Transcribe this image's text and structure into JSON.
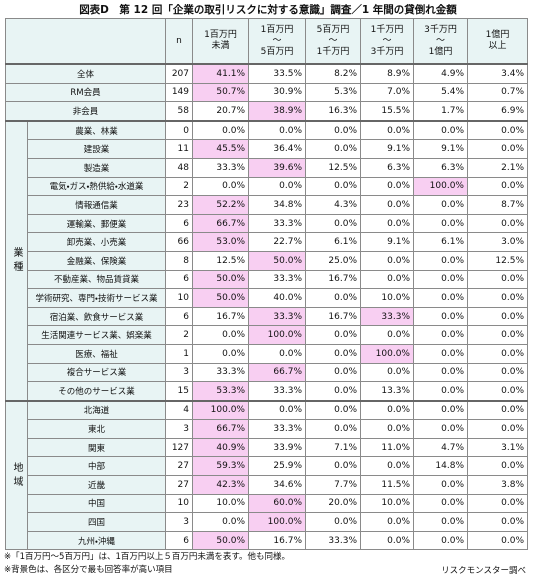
{
  "title": "図表D　第 12 回「企業の取引リスクに対する意識」調査／1 年間の貸倒れ金額",
  "table": {
    "columns": [
      "n",
      "1百万円\n未満",
      "1百万円\n～\n5百万円",
      "5百万円\n～\n1千万円",
      "1千万円\n～\n3千万円",
      "3千万円\n～\n1億円",
      "1億円\n以上"
    ],
    "rows": [
      {
        "name": "全体",
        "n": 207,
        "values": [
          "41.1%",
          "33.5%",
          "8.2%",
          "8.9%",
          "4.9%",
          "3.4%"
        ],
        "highlight": [
          0
        ]
      },
      {
        "name": "RM会員",
        "n": 149,
        "values": [
          "50.7%",
          "30.9%",
          "5.3%",
          "7.0%",
          "5.4%",
          "0.7%"
        ],
        "highlight": [
          0
        ]
      },
      {
        "name": "非会員",
        "n": 58,
        "values": [
          "20.7%",
          "38.9%",
          "16.3%",
          "15.5%",
          "1.7%",
          "6.9%"
        ],
        "highlight": [
          1
        ]
      }
    ],
    "groups": [
      {
        "label": "業種",
        "rows": [
          {
            "name": "農業、林業",
            "n": 0,
            "values": [
              "0.0%",
              "0.0%",
              "0.0%",
              "0.0%",
              "0.0%",
              "0.0%"
            ],
            "highlight": []
          },
          {
            "name": "建設業",
            "n": 11,
            "values": [
              "45.5%",
              "36.4%",
              "0.0%",
              "9.1%",
              "9.1%",
              "0.0%"
            ],
            "highlight": [
              0
            ]
          },
          {
            "name": "製造業",
            "n": 48,
            "values": [
              "33.3%",
              "39.6%",
              "12.5%",
              "6.3%",
              "6.3%",
              "2.1%"
            ],
            "highlight": [
              1
            ]
          },
          {
            "name": "電気・ガス・熱供給・水道業",
            "n": 2,
            "values": [
              "0.0%",
              "0.0%",
              "0.0%",
              "0.0%",
              "100.0%",
              "0.0%"
            ],
            "highlight": [
              4
            ]
          },
          {
            "name": "情報通信業",
            "n": 23,
            "values": [
              "52.2%",
              "34.8%",
              "4.3%",
              "0.0%",
              "0.0%",
              "8.7%"
            ],
            "highlight": [
              0
            ]
          },
          {
            "name": "運輸業、郵便業",
            "n": 6,
            "values": [
              "66.7%",
              "33.3%",
              "0.0%",
              "0.0%",
              "0.0%",
              "0.0%"
            ],
            "highlight": [
              0
            ]
          },
          {
            "name": "卸売業、小売業",
            "n": 66,
            "values": [
              "53.0%",
              "22.7%",
              "6.1%",
              "9.1%",
              "6.1%",
              "3.0%"
            ],
            "highlight": [
              0
            ]
          },
          {
            "name": "金融業、保険業",
            "n": 8,
            "values": [
              "12.5%",
              "50.0%",
              "25.0%",
              "0.0%",
              "0.0%",
              "12.5%"
            ],
            "highlight": [
              1
            ]
          },
          {
            "name": "不動産業、物品賃貸業",
            "n": 6,
            "values": [
              "50.0%",
              "33.3%",
              "16.7%",
              "0.0%",
              "0.0%",
              "0.0%"
            ],
            "highlight": [
              0
            ]
          },
          {
            "name": "学術研究、専門・技術サービス業",
            "n": 10,
            "values": [
              "50.0%",
              "40.0%",
              "0.0%",
              "10.0%",
              "0.0%",
              "0.0%"
            ],
            "highlight": [
              0
            ]
          },
          {
            "name": "宿泊業、飲食サービス業",
            "n": 6,
            "values": [
              "16.7%",
              "33.3%",
              "16.7%",
              "33.3%",
              "0.0%",
              "0.0%"
            ],
            "highlight": [
              1,
              3
            ]
          },
          {
            "name": "生活関連サービス業、娯楽業",
            "n": 2,
            "values": [
              "0.0%",
              "100.0%",
              "0.0%",
              "0.0%",
              "0.0%",
              "0.0%"
            ],
            "highlight": [
              1
            ]
          },
          {
            "name": "医療、福祉",
            "n": 1,
            "values": [
              "0.0%",
              "0.0%",
              "0.0%",
              "100.0%",
              "0.0%",
              "0.0%"
            ],
            "highlight": [
              3
            ]
          },
          {
            "name": "複合サービス業",
            "n": 3,
            "values": [
              "33.3%",
              "66.7%",
              "0.0%",
              "0.0%",
              "0.0%",
              "0.0%"
            ],
            "highlight": [
              1
            ]
          },
          {
            "name": "その他のサービス業",
            "n": 15,
            "values": [
              "53.3%",
              "33.3%",
              "0.0%",
              "13.3%",
              "0.0%",
              "0.0%"
            ],
            "highlight": [
              0
            ]
          }
        ]
      },
      {
        "label": "地域",
        "rows": [
          {
            "name": "北海道",
            "n": 4,
            "values": [
              "100.0%",
              "0.0%",
              "0.0%",
              "0.0%",
              "0.0%",
              "0.0%"
            ],
            "highlight": [
              0
            ]
          },
          {
            "name": "東北",
            "n": 3,
            "values": [
              "66.7%",
              "33.3%",
              "0.0%",
              "0.0%",
              "0.0%",
              "0.0%"
            ],
            "highlight": [
              0
            ]
          },
          {
            "name": "関東",
            "n": 127,
            "values": [
              "40.9%",
              "33.9%",
              "7.1%",
              "11.0%",
              "4.7%",
              "3.1%"
            ],
            "highlight": [
              0
            ]
          },
          {
            "name": "中部",
            "n": 27,
            "values": [
              "59.3%",
              "25.9%",
              "0.0%",
              "0.0%",
              "14.8%",
              "0.0%"
            ],
            "highlight": [
              0
            ]
          },
          {
            "name": "近畿",
            "n": 27,
            "values": [
              "42.3%",
              "34.6%",
              "7.7%",
              "11.5%",
              "0.0%",
              "3.8%"
            ],
            "highlight": [
              0
            ]
          },
          {
            "name": "中国",
            "n": 10,
            "values": [
              "10.0%",
              "60.0%",
              "20.0%",
              "10.0%",
              "0.0%",
              "0.0%"
            ],
            "highlight": [
              1
            ]
          },
          {
            "name": "四国",
            "n": 3,
            "values": [
              "0.0%",
              "100.0%",
              "0.0%",
              "0.0%",
              "0.0%",
              "0.0%"
            ],
            "highlight": [
              1
            ]
          },
          {
            "name": "九州・沖縄",
            "n": 6,
            "values": [
              "50.0%",
              "16.7%",
              "33.3%",
              "0.0%",
              "0.0%",
              "0.0%"
            ],
            "highlight": [
              0
            ]
          }
        ]
      }
    ]
  },
  "footnotes": [
    "※「1百万円～5百万円」は、1百万円以上５百万円未満を表す。他も同様。",
    "※背景色は、各区分で最も回答率が高い項目"
  ],
  "source": "リスクモンスター調べ"
}
